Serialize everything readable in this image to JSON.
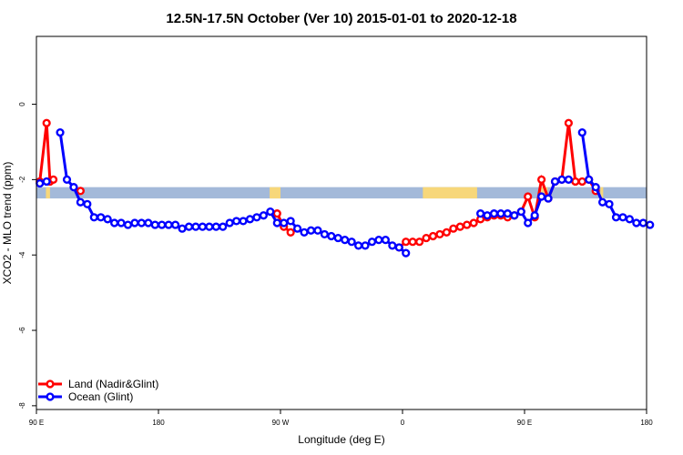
{
  "chart_data": {
    "type": "line",
    "title": "12.5N-17.5N October (Ver 10)   2015-01-01 to 2020-12-18",
    "xlabel": "Longitude (deg E)",
    "ylabel": "XCO2 - MLO trend (ppm)",
    "xlim": [
      90,
      540
    ],
    "ylim": [
      -8.1,
      1.8
    ],
    "x_ticks": [
      {
        "value": 90,
        "label": "90 E"
      },
      {
        "value": 180,
        "label": "180"
      },
      {
        "value": 270,
        "label": "90 W"
      },
      {
        "value": 360,
        "label": "0"
      },
      {
        "value": 450,
        "label": "90 E"
      },
      {
        "value": 540,
        "label": "180"
      }
    ],
    "y_ticks": [
      {
        "value": 0,
        "label": "0"
      },
      {
        "value": -2,
        "label": "-2"
      },
      {
        "value": -4,
        "label": "-4"
      },
      {
        "value": -6,
        "label": "-6"
      },
      {
        "value": -8,
        "label": "-8"
      }
    ],
    "legend_position": "bottom-left",
    "band": {
      "y_min": -2.5,
      "y_max": -2.2,
      "ocean_color": "#a3b9d9",
      "land_color": "#f7d77a",
      "land_ranges": [
        [
          97,
          100
        ],
        [
          262,
          270
        ],
        [
          375,
          415
        ],
        [
          462,
          467
        ],
        [
          506,
          508
        ]
      ]
    },
    "series": [
      {
        "name": "Land (Nadir&Glint)",
        "color": "#ff0000",
        "x": [
          92.5,
          97.5,
          100,
          102.5,
          122.5,
          267.5,
          272.5,
          277.5,
          357.5,
          362.5,
          367.5,
          372.5,
          377.5,
          382.5,
          387.5,
          392.5,
          397.5,
          402.5,
          407.5,
          412.5,
          417.5,
          422.5,
          427.5,
          432.5,
          437.5,
          442.5,
          447.5,
          452.5,
          457.5,
          462.5,
          467.5,
          472.5,
          477.5,
          482.5,
          487.5,
          492.5,
          497.5,
          502.5
        ],
        "y": [
          -2.05,
          -0.5,
          -2.05,
          -2.0,
          -2.3,
          -2.9,
          -3.25,
          -3.4,
          -3.8,
          -3.65,
          -3.65,
          -3.65,
          -3.55,
          -3.5,
          -3.45,
          -3.4,
          -3.3,
          -3.25,
          -3.2,
          -3.15,
          -3.05,
          -3.0,
          -2.95,
          -2.95,
          -3.0,
          -2.95,
          -2.85,
          -2.45,
          -3.0,
          -2.0,
          -2.5,
          -2.05,
          -2.0,
          -0.5,
          -2.05,
          -2.05,
          -2.0,
          -2.3
        ]
      },
      {
        "name": "Ocean (Glint)",
        "color": "#0000ff",
        "x": [
          92.5,
          97.5,
          107.5,
          112.5,
          117.5,
          122.5,
          127.5,
          132.5,
          137.5,
          142.5,
          147.5,
          152.5,
          157.5,
          162.5,
          167.5,
          172.5,
          177.5,
          182.5,
          187.5,
          192.5,
          197.5,
          202.5,
          207.5,
          212.5,
          217.5,
          222.5,
          227.5,
          232.5,
          237.5,
          242.5,
          247.5,
          252.5,
          257.5,
          262.5,
          267.5,
          272.5,
          277.5,
          282.5,
          287.5,
          292.5,
          297.5,
          302.5,
          307.5,
          312.5,
          317.5,
          322.5,
          327.5,
          332.5,
          337.5,
          342.5,
          347.5,
          352.5,
          357.5,
          362.5,
          417.5,
          422.5,
          427.5,
          432.5,
          437.5,
          442.5,
          447.5,
          452.5,
          457.5,
          462.5,
          467.5,
          472.5,
          477.5,
          482.5,
          492.5,
          497.5,
          502.5,
          507.5,
          512.5,
          517.5,
          522.5,
          527.5,
          532.5,
          537.5,
          542.5
        ],
        "y": [
          -2.1,
          -2.05,
          -0.75,
          -2.0,
          -2.2,
          -2.6,
          -2.65,
          -3.0,
          -3.0,
          -3.05,
          -3.15,
          -3.15,
          -3.2,
          -3.15,
          -3.15,
          -3.15,
          -3.2,
          -3.2,
          -3.2,
          -3.2,
          -3.3,
          -3.25,
          -3.25,
          -3.25,
          -3.25,
          -3.25,
          -3.25,
          -3.15,
          -3.1,
          -3.1,
          -3.05,
          -3.0,
          -2.95,
          -2.85,
          -3.15,
          -3.15,
          -3.1,
          -3.3,
          -3.4,
          -3.35,
          -3.35,
          -3.45,
          -3.5,
          -3.55,
          -3.6,
          -3.65,
          -3.75,
          -3.75,
          -3.65,
          -3.6,
          -3.6,
          -3.75,
          -3.8,
          -3.95,
          -2.9,
          -2.95,
          -2.9,
          -2.9,
          -2.9,
          -2.95,
          -2.85,
          -3.15,
          -2.95,
          -2.45,
          -2.5,
          -2.05,
          -2.0,
          -2.0,
          -0.75,
          -2.0,
          -2.2,
          -2.6,
          -2.65,
          -3.0,
          -3.0,
          -3.05,
          -3.15,
          -3.15,
          -3.2
        ]
      }
    ]
  }
}
